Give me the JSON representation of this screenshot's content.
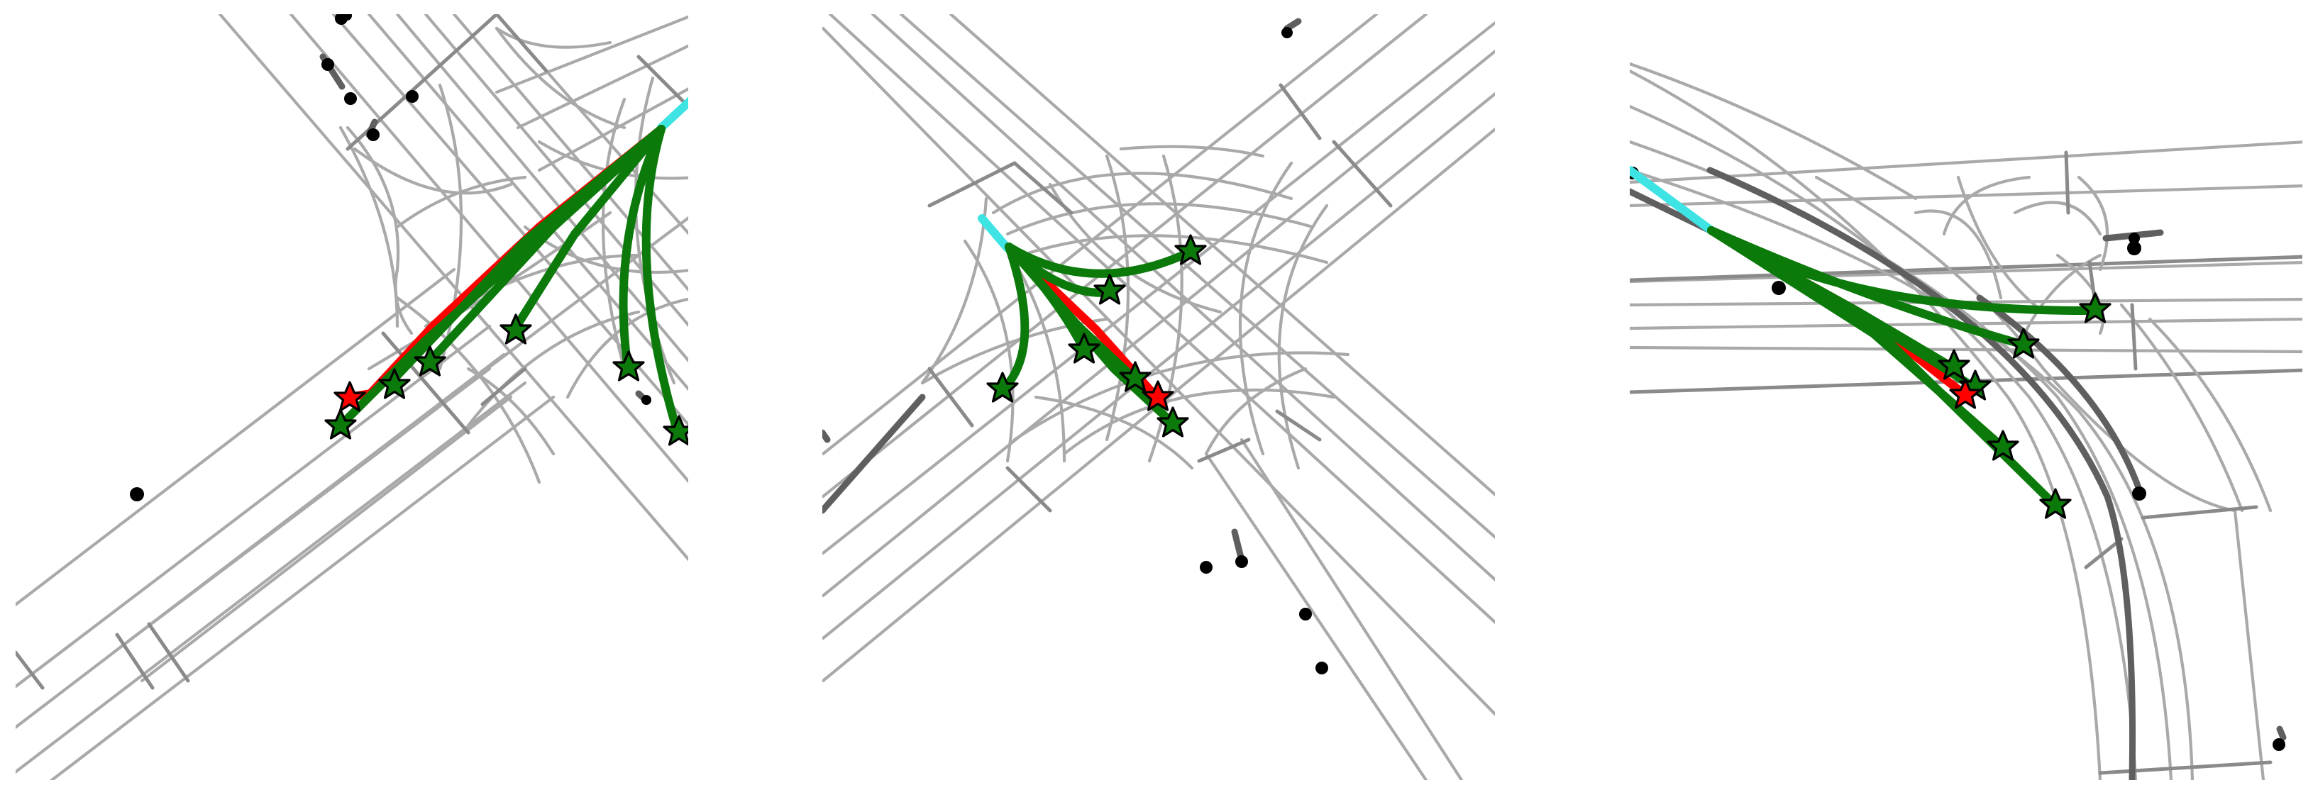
{
  "figure": {
    "panel_count": 3,
    "colors": {
      "lane": "#a9a9a9",
      "boundary": "#8a8a8a",
      "agent_track": "#5f5f5f",
      "agent": "#000000",
      "history": "#3ee3e3",
      "ground_truth": "#ff0000",
      "prediction": "#0b7a0b",
      "endpoint_star_gt": "#ff0000",
      "endpoint_star_pred": "#0b7a0b"
    },
    "panels": [
      {
        "id": "panel-1",
        "predicted_modes": 6,
        "ground_truth_modes": 1,
        "nearby_agents": 8
      },
      {
        "id": "panel-2",
        "predicted_modes": 6,
        "ground_truth_modes": 1,
        "nearby_agents": 6
      },
      {
        "id": "panel-3",
        "predicted_modes": 6,
        "ground_truth_modes": 1,
        "nearby_agents": 5
      }
    ]
  }
}
